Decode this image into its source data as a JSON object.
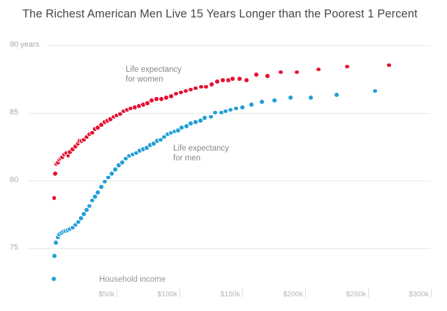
{
  "title": "The Richest American Men Live 15 Years Longer than the Poorest 1 Percent",
  "chart_data": {
    "type": "scatter",
    "title": "The Richest American Men Live 15 Years Longer than the Poorest 1 Percent",
    "xlabel": "Household income",
    "ylabel": "years",
    "xlim_k": [
      0,
      312
    ],
    "ylim_years": [
      72,
      90.5
    ],
    "grid": "horizontal-only",
    "legend_position": "inline-annotations",
    "x_ticks": [
      {
        "label": "$50k",
        "value": 50
      },
      {
        "label": "$100k",
        "value": 100
      },
      {
        "label": "$150k",
        "value": 150
      },
      {
        "label": "$200k",
        "value": 200
      },
      {
        "label": "$250k",
        "value": 250
      },
      {
        "label": "$300k",
        "value": 300
      }
    ],
    "y_ticks": [
      {
        "label": "90 years",
        "value": 90
      },
      {
        "label": "85",
        "value": 85
      },
      {
        "label": "80",
        "value": 80
      },
      {
        "label": "75",
        "value": 75
      }
    ],
    "series": [
      {
        "name": "men",
        "label": "Life expectancy\nfor men",
        "color": "#239fd6",
        "points_income_k_vs_years": [
          [
            0,
            72.7
          ],
          [
            0.6,
            74.4
          ],
          [
            1.7,
            75.4
          ],
          [
            3.3,
            75.8
          ],
          [
            4.4,
            76.0
          ],
          [
            6.1,
            76.1
          ],
          [
            7.8,
            76.2
          ],
          [
            9.4,
            76.25
          ],
          [
            11.1,
            76.3
          ],
          [
            12.8,
            76.4
          ],
          [
            15,
            76.5
          ],
          [
            17.2,
            76.7
          ],
          [
            19.4,
            76.9
          ],
          [
            21.7,
            77.2
          ],
          [
            23.9,
            77.5
          ],
          [
            26.1,
            77.8
          ],
          [
            28.3,
            78.1
          ],
          [
            30.6,
            78.5
          ],
          [
            32.8,
            78.8
          ],
          [
            35,
            79.1
          ],
          [
            37.8,
            79.5
          ],
          [
            40.6,
            79.9
          ],
          [
            43.3,
            80.2
          ],
          [
            46.1,
            80.5
          ],
          [
            48.9,
            80.8
          ],
          [
            51.7,
            81.1
          ],
          [
            54.4,
            81.3
          ],
          [
            57.2,
            81.6
          ],
          [
            60,
            81.8
          ],
          [
            62.8,
            81.9
          ],
          [
            65.6,
            82.0
          ],
          [
            68.3,
            82.2
          ],
          [
            71.1,
            82.3
          ],
          [
            73.9,
            82.4
          ],
          [
            76.7,
            82.6
          ],
          [
            79.4,
            82.7
          ],
          [
            82.2,
            82.9
          ],
          [
            85,
            83.0
          ],
          [
            87.8,
            83.2
          ],
          [
            90.6,
            83.4
          ],
          [
            93.3,
            83.5
          ],
          [
            96.1,
            83.6
          ],
          [
            98.9,
            83.7
          ],
          [
            101.7,
            83.9
          ],
          [
            105.6,
            84.0
          ],
          [
            108.9,
            84.2
          ],
          [
            112.8,
            84.3
          ],
          [
            116.7,
            84.4
          ],
          [
            120,
            84.6
          ],
          [
            125,
            84.7
          ],
          [
            128.3,
            85.0
          ],
          [
            133.3,
            85.0
          ],
          [
            136.7,
            85.1
          ],
          [
            140.6,
            85.2
          ],
          [
            145,
            85.3
          ],
          [
            150,
            85.4
          ],
          [
            157.2,
            85.6
          ],
          [
            165.6,
            85.8
          ],
          [
            175.6,
            85.9
          ],
          [
            188.3,
            86.1
          ],
          [
            204.4,
            86.1
          ],
          [
            225,
            86.3
          ],
          [
            255.6,
            86.6
          ]
        ]
      },
      {
        "name": "women",
        "label": "Life expectancy\nfor women",
        "color": "#e51232",
        "points_income_k_vs_years": [
          [
            0.3,
            78.7
          ],
          [
            1.1,
            80.5
          ],
          [
            1.9,
            81.2
          ],
          [
            3.3,
            81.3
          ],
          [
            4.2,
            81.5
          ],
          [
            5.3,
            81.6
          ],
          [
            6.7,
            81.7
          ],
          [
            8.3,
            81.9
          ],
          [
            10,
            82.0
          ],
          [
            11.4,
            81.8
          ],
          [
            12.8,
            82.1
          ],
          [
            15,
            82.3
          ],
          [
            17.2,
            82.5
          ],
          [
            19.2,
            82.7
          ],
          [
            20.6,
            82.9
          ],
          [
            22.2,
            82.9
          ],
          [
            23.9,
            83.0
          ],
          [
            26.1,
            83.2
          ],
          [
            28.3,
            83.4
          ],
          [
            30.6,
            83.5
          ],
          [
            32.8,
            83.8
          ],
          [
            35,
            83.9
          ],
          [
            37.8,
            84.1
          ],
          [
            40.6,
            84.3
          ],
          [
            42.8,
            84.4
          ],
          [
            45,
            84.5
          ],
          [
            47.8,
            84.7
          ],
          [
            50,
            84.8
          ],
          [
            52.8,
            84.9
          ],
          [
            55.6,
            85.1
          ],
          [
            58.3,
            85.2
          ],
          [
            61.1,
            85.3
          ],
          [
            64.4,
            85.4
          ],
          [
            67.8,
            85.5
          ],
          [
            71.1,
            85.6
          ],
          [
            74.4,
            85.7
          ],
          [
            77.8,
            85.9
          ],
          [
            81.7,
            86.0
          ],
          [
            85.6,
            86.0
          ],
          [
            89.4,
            86.1
          ],
          [
            93.3,
            86.2
          ],
          [
            97.2,
            86.4
          ],
          [
            101.1,
            86.5
          ],
          [
            105,
            86.6
          ],
          [
            108.9,
            86.7
          ],
          [
            112.8,
            86.8
          ],
          [
            117.2,
            86.9
          ],
          [
            121.1,
            86.9
          ],
          [
            125.6,
            87.1
          ],
          [
            130,
            87.3
          ],
          [
            134.4,
            87.4
          ],
          [
            138.9,
            87.4
          ],
          [
            142.2,
            87.5
          ],
          [
            147.8,
            87.5
          ],
          [
            153.3,
            87.4
          ],
          [
            161.1,
            87.8
          ],
          [
            170,
            87.7
          ],
          [
            180.6,
            88.0
          ],
          [
            193.3,
            88.0
          ],
          [
            210.6,
            88.2
          ],
          [
            233.3,
            88.4
          ],
          [
            266.7,
            88.5
          ]
        ]
      }
    ]
  },
  "labels": {
    "women_series": "Life expectancy\nfor women",
    "men_series": "Life expectancy\nfor men",
    "x_axis_title": "Household income"
  },
  "colors": {
    "women": "#e51232",
    "men": "#239fd6",
    "title_text": "#474747",
    "axis_text": "#a8a8a8",
    "gridline": "#e7e7e7"
  }
}
